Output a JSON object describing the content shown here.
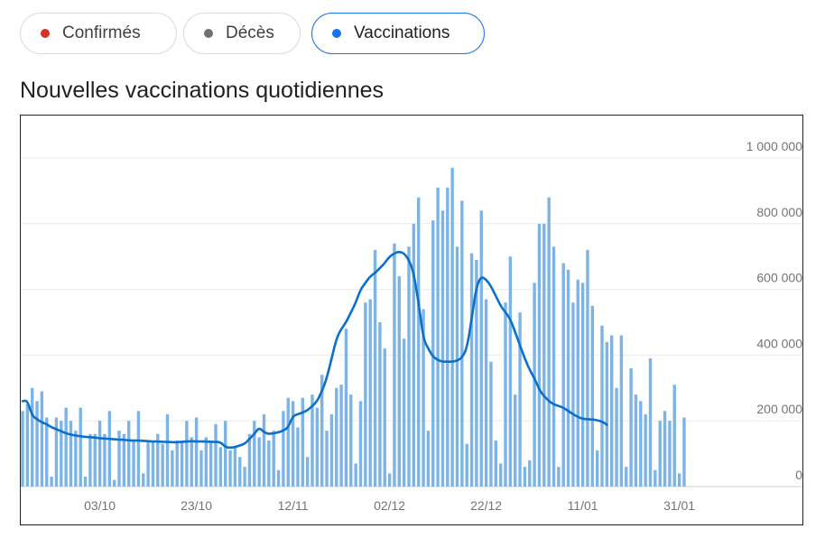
{
  "chips": [
    {
      "label": "Confirmés",
      "dot_color": "#d93025",
      "active": false
    },
    {
      "label": "Décès",
      "dot_color": "#707070",
      "active": false
    },
    {
      "label": "Vaccinations",
      "dot_color": "#1a73e8",
      "active": true
    }
  ],
  "title": "Nouvelles vaccinations quotidiennes",
  "chart_data": {
    "type": "bar",
    "title": "Nouvelles vaccinations quotidiennes",
    "ylim": [
      0,
      1000000
    ],
    "y_ticks": [
      0,
      200000,
      400000,
      600000,
      800000,
      1000000
    ],
    "y_tick_labels": [
      "0",
      "200 000",
      "400 000",
      "600 000",
      "800 000",
      "1 000 000"
    ],
    "x_ticks": [
      "03/10",
      "23/10",
      "12/11",
      "02/12",
      "22/12",
      "11/01",
      "31/01"
    ],
    "x_tick_index": [
      16,
      36,
      56,
      76,
      96,
      116,
      136
    ],
    "grid": true,
    "bar_color": "#7cb4e8",
    "line_color": "#0b6fcc",
    "series": [
      {
        "type": "bar",
        "values": [
          230000,
          250000,
          300000,
          260000,
          290000,
          210000,
          30000,
          210000,
          200000,
          240000,
          200000,
          170000,
          240000,
          30000,
          160000,
          160000,
          200000,
          160000,
          230000,
          20000,
          170000,
          160000,
          200000,
          140000,
          230000,
          40000,
          140000,
          140000,
          160000,
          130000,
          220000,
          110000,
          140000,
          140000,
          200000,
          150000,
          210000,
          110000,
          150000,
          140000,
          190000,
          120000,
          200000,
          110000,
          120000,
          90000,
          60000,
          160000,
          200000,
          150000,
          220000,
          140000,
          170000,
          50000,
          230000,
          270000,
          260000,
          180000,
          270000,
          90000,
          280000,
          240000,
          340000,
          170000,
          220000,
          300000,
          310000,
          480000,
          280000,
          70000,
          260000,
          560000,
          570000,
          720000,
          500000,
          420000,
          40000,
          740000,
          640000,
          450000,
          730000,
          800000,
          880000,
          540000,
          170000,
          810000,
          910000,
          840000,
          910000,
          970000,
          730000,
          870000,
          130000,
          710000,
          690000,
          840000,
          570000,
          380000,
          140000,
          70000,
          560000,
          700000,
          280000,
          530000,
          60000,
          80000,
          620000,
          800000,
          800000,
          880000,
          730000,
          60000,
          680000,
          660000,
          560000,
          630000,
          620000,
          720000,
          550000,
          110000,
          490000,
          440000,
          460000,
          300000,
          460000,
          60000,
          360000,
          280000,
          260000,
          220000,
          390000,
          50000,
          200000,
          230000,
          200000,
          310000,
          40000,
          210000
        ]
      },
      {
        "type": "line",
        "name": "",
        "values": [
          260000,
          262000,
          215000,
          205000,
          195000,
          190000,
          180000,
          175000,
          168000,
          162000,
          158000,
          155000,
          153000,
          151000,
          150000,
          149000,
          147000,
          146000,
          145000,
          144000,
          143000,
          142000,
          141000,
          140000,
          140000,
          139000,
          138000,
          137000,
          137000,
          136000,
          136000,
          135000,
          135000,
          136000,
          137000,
          138000,
          137000,
          137000,
          137000,
          136000,
          136000,
          135000,
          120000,
          118000,
          120000,
          125000,
          130000,
          145000,
          160000,
          180000,
          165000,
          160000,
          162000,
          165000,
          170000,
          180000,
          215000,
          220000,
          225000,
          232000,
          245000,
          260000,
          290000,
          330000,
          390000,
          450000,
          480000,
          500000,
          530000,
          560000,
          600000,
          620000,
          640000,
          650000,
          665000,
          680000,
          700000,
          710000,
          715000,
          710000,
          690000,
          650000,
          560000,
          450000,
          420000,
          395000,
          385000,
          380000,
          380000,
          380000,
          383000,
          392000,
          420000,
          510000,
          610000,
          640000,
          630000,
          610000,
          580000,
          550000,
          530000,
          510000,
          470000,
          430000,
          390000,
          355000,
          330000,
          295000,
          275000,
          260000,
          250000,
          245000,
          240000,
          230000,
          220000,
          212000,
          206000,
          205000,
          204000,
          202000,
          198000,
          188000
        ]
      }
    ]
  }
}
